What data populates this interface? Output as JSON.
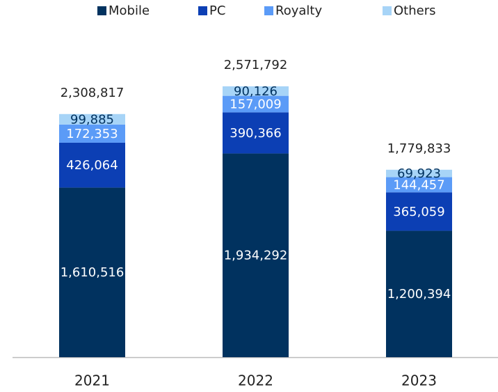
{
  "chart_data": {
    "type": "stacked_bar",
    "categories": [
      "2021",
      "2022",
      "2023"
    ],
    "series": [
      {
        "name": "Mobile",
        "color": "#01325f",
        "values": [
          1610516,
          1934292,
          1200394
        ],
        "value_labels": [
          "1,610,516",
          "1,934,292",
          "1,200,394"
        ]
      },
      {
        "name": "PC",
        "color": "#0c3fb4",
        "values": [
          426064,
          390366,
          365059
        ],
        "value_labels": [
          "426,064",
          "390,366",
          "365,059"
        ]
      },
      {
        "name": "Royalty",
        "color": "#5b9bf7",
        "values": [
          172353,
          157009,
          144457
        ],
        "value_labels": [
          "172,353",
          "157,009",
          "144,457"
        ]
      },
      {
        "name": "Others",
        "color": "#a7d4f7",
        "values": [
          99885,
          90126,
          69923
        ],
        "value_labels": [
          "99,885",
          "90,126",
          "69,923"
        ]
      }
    ],
    "totals": [
      2308817,
      2571792,
      1779833
    ],
    "total_labels": [
      "2,308,817",
      "2,571,792",
      "1,779,833"
    ]
  }
}
